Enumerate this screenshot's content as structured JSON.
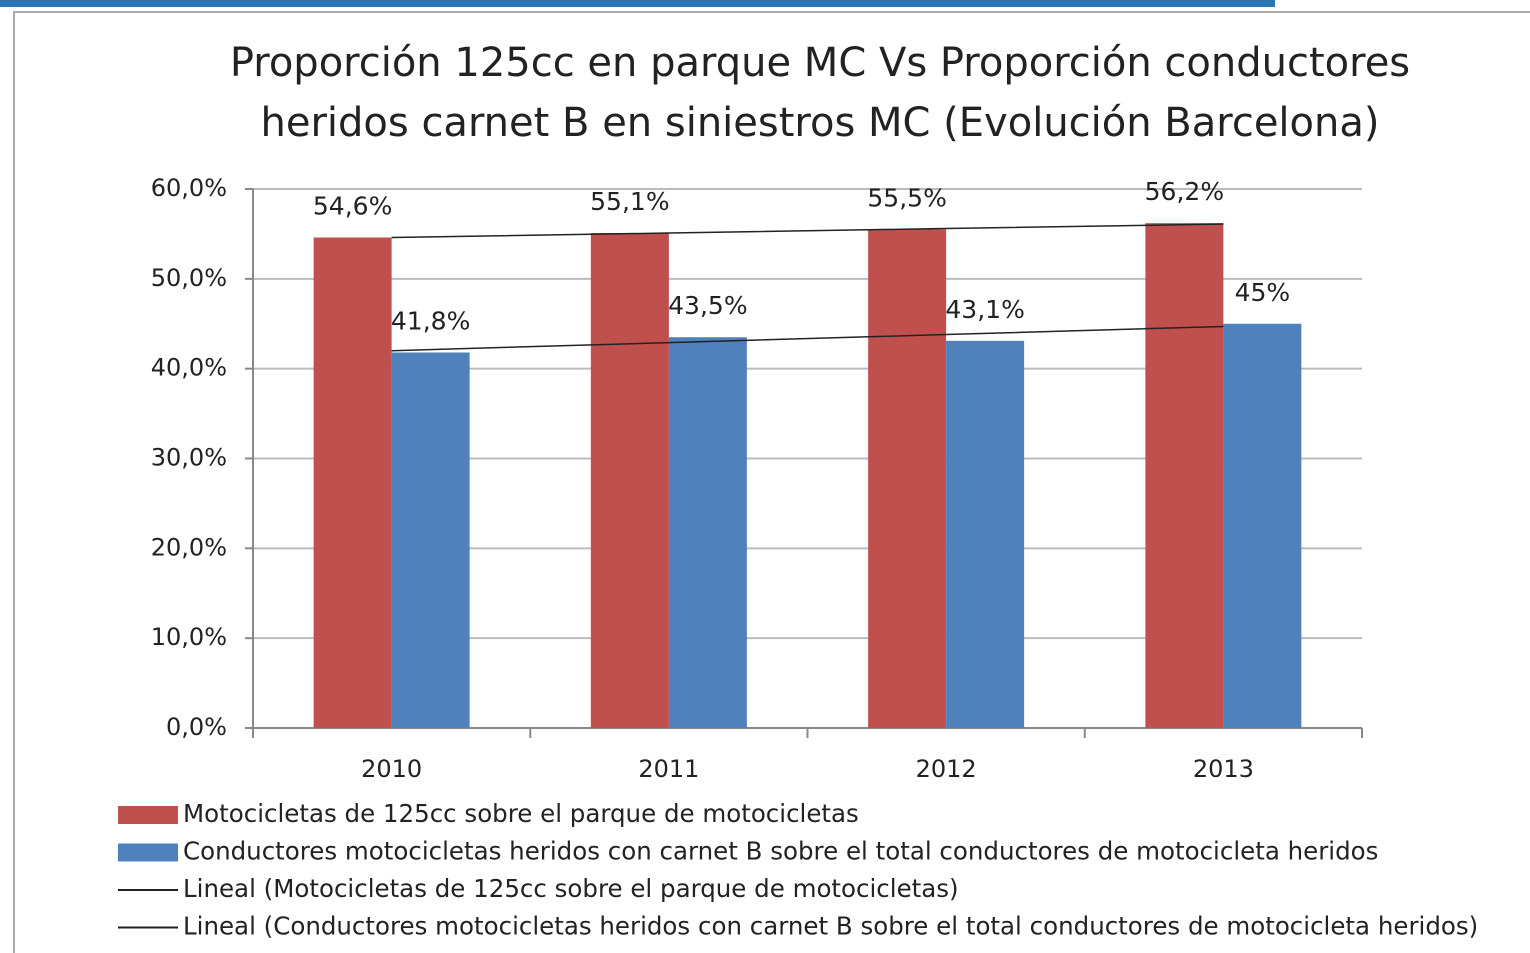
{
  "chart_data": {
    "type": "bar",
    "title": [
      "Proporción 125cc en parque MC Vs Proporción conductores",
      "heridos carnet B  en siniestros MC (Evolución Barcelona)"
    ],
    "categories": [
      "2010",
      "2011",
      "2012",
      "2013"
    ],
    "series": [
      {
        "name": "Motocicletas de 125cc sobre el parque de motocicletas",
        "color": "#c0504d",
        "values": [
          54.6,
          55.1,
          55.5,
          56.2
        ],
        "value_labels": [
          "54,6%",
          "55,1%",
          "55,5%",
          "56,2%"
        ]
      },
      {
        "name": "Conductores motocicletas heridos con carnet B sobre el total conductores de motocicleta heridos",
        "color": "#4f81bd",
        "values": [
          41.8,
          43.5,
          43.1,
          45
        ],
        "value_labels": [
          "41,8%",
          "43,5%",
          "43,1%",
          "45%"
        ]
      }
    ],
    "trendlines": [
      {
        "name": "Lineal (Motocicletas de 125cc sobre el parque de motocicletas)",
        "color": "#222222",
        "values": [
          54.6,
          55.1,
          55.6,
          56.1
        ]
      },
      {
        "name": "Lineal (Conductores motocicletas heridos con carnet B sobre el total conductores de motocicleta heridos)",
        "color": "#222222",
        "values": [
          42.0,
          42.9,
          43.8,
          44.7
        ]
      }
    ],
    "ylim": [
      0,
      60
    ],
    "yticks": [
      {
        "value": 0,
        "label": "0,0%"
      },
      {
        "value": 10,
        "label": "10,0%"
      },
      {
        "value": 20,
        "label": "20,0%"
      },
      {
        "value": 30,
        "label": "30,0%"
      },
      {
        "value": 40,
        "label": "40,0%"
      },
      {
        "value": 50,
        "label": "50,0%"
      },
      {
        "value": 60,
        "label": "60,0%"
      }
    ],
    "grid": true
  }
}
